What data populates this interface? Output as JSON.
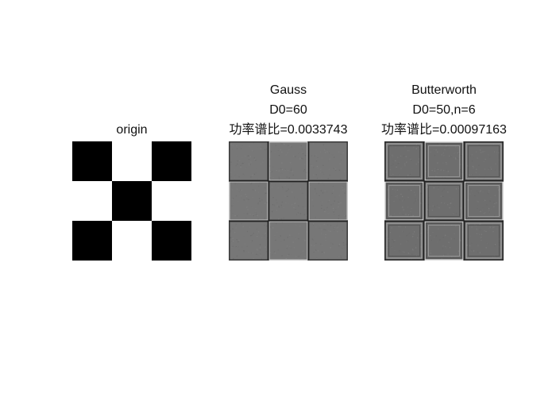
{
  "panels": [
    {
      "id": "origin",
      "title_lines": [
        "origin"
      ],
      "grid": [
        [
          "#000000",
          "#ffffff",
          "#000000"
        ],
        [
          "#ffffff",
          "#000000",
          "#ffffff"
        ],
        [
          "#000000",
          "#ffffff",
          "#000000"
        ]
      ],
      "style": "binary"
    },
    {
      "id": "gauss",
      "title_lines": [
        "Gauss",
        "D0=60",
        "功率谱比=0.0033743"
      ],
      "base_color": "#777777",
      "style": "filtered-light"
    },
    {
      "id": "butterworth",
      "title_lines": [
        "Butterworth",
        "D0=50,n=6",
        "功率谱比=0.00097163"
      ],
      "base_color": "#6e6e6e",
      "style": "filtered-ringing"
    }
  ]
}
